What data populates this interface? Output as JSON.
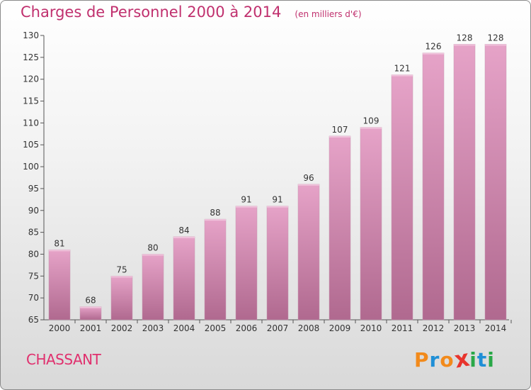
{
  "colors": {
    "accent": "#c0306e",
    "bar_top": "#e6a3c8",
    "bar_bottom": "#b0698f",
    "logo": [
      "#f28a1b",
      "#1f8fd6",
      "#f28a1b",
      "#e8342d",
      "#2aa848",
      "#1f8fd6",
      "#2aa848"
    ]
  },
  "chart_data": {
    "type": "bar",
    "title": "Charges de Personnel 2000 à 2014",
    "subtitle": "(en milliers d'€)",
    "xlabel": "",
    "ylabel": "",
    "categories": [
      "2000",
      "2001",
      "2002",
      "2003",
      "2004",
      "2005",
      "2006",
      "2007",
      "2008",
      "2009",
      "2010",
      "2011",
      "2012",
      "2013",
      "2014"
    ],
    "values": [
      81,
      68,
      75,
      80,
      84,
      88,
      91,
      91,
      96,
      107,
      109,
      121,
      126,
      128,
      128
    ],
    "ylim": [
      65,
      130
    ],
    "yticks": [
      65,
      70,
      75,
      80,
      85,
      90,
      95,
      100,
      105,
      110,
      115,
      120,
      125,
      130
    ],
    "grid": false,
    "legend": "none"
  },
  "footer": {
    "commune": "CHASSANT",
    "logo_letters": [
      "P",
      "r",
      "o",
      "x",
      "i",
      "t",
      "i"
    ]
  }
}
